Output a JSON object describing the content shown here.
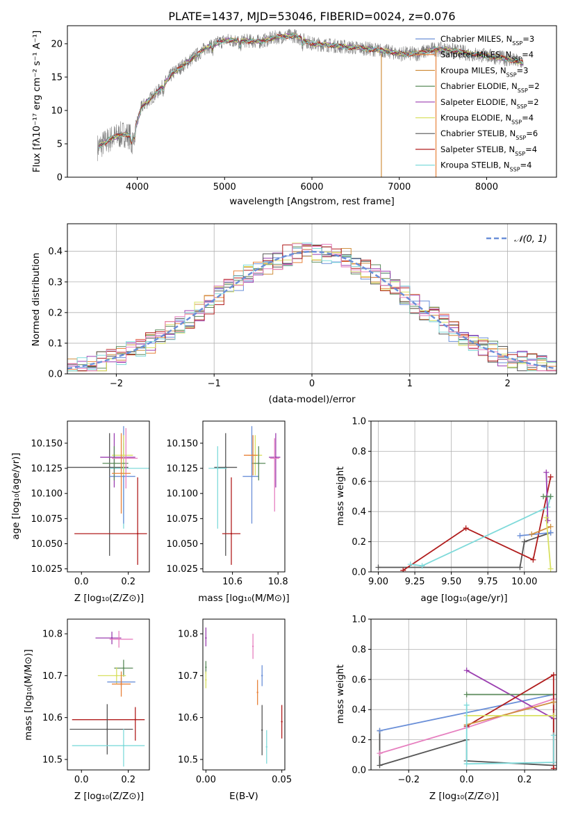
{
  "colors": {
    "Chabrier MILES": "#6a8fd8",
    "Salpeter MILES": "#e8823a",
    "Kroupa MILES": "#d09040",
    "Chabrier ELODIE": "#5a8a5a",
    "Salpeter ELODIE": "#9b3fb0",
    "Kroupa ELODIE": "#d8e060",
    "Chabrier STELIB": "#555555",
    "Salpeter STELIB": "#b01c1c",
    "Kroupa STELIB": "#7fdada",
    "Pink": "#e67fbf",
    "grid": "#b0b0b0"
  },
  "chart_data": [
    {
      "id": "spectrum",
      "type": "line",
      "title": "PLATE=1437, MJD=53046, FIBERID=0024, z=0.076",
      "xlabel": "wavelength [Angstrom, rest frame]",
      "ylabel": "Flux [fλ10⁻¹⁷ erg cm⁻² s⁻¹ A⁻¹]",
      "xlim": [
        3200,
        8800
      ],
      "ylim": [
        0,
        22.7
      ],
      "xticks": [
        "4000",
        "5000",
        "6000",
        "7000",
        "8000"
      ],
      "yticks": [
        "0",
        "5",
        "10",
        "15",
        "20"
      ],
      "grid": false,
      "legend_position": "right",
      "legend": [
        {
          "name": "Chabrier MILES",
          "nssp": "3"
        },
        {
          "name": "Salpeter MILES",
          "nssp": "4"
        },
        {
          "name": "Kroupa MILES",
          "nssp": "3"
        },
        {
          "name": "Chabrier ELODIE",
          "nssp": "2"
        },
        {
          "name": "Salpeter ELODIE",
          "nssp": "2"
        },
        {
          "name": "Kroupa ELODIE",
          "nssp": "4"
        },
        {
          "name": "Chabrier STELIB",
          "nssp": "6"
        },
        {
          "name": "Salpeter STELIB",
          "nssp": "4"
        },
        {
          "name": "Kroupa STELIB",
          "nssp": "4"
        }
      ],
      "continuum_x": [
        3550,
        3700,
        3850,
        3950,
        4050,
        4250,
        4400,
        4600,
        4800,
        5000,
        5200,
        5400,
        5600,
        5800,
        6000,
        6200,
        6400,
        6600,
        6800,
        7000,
        7200,
        7400,
        7600,
        7800,
        8000,
        8200,
        8400
      ],
      "continuum_y": [
        4.5,
        5.8,
        6.5,
        6.0,
        10.5,
        13.0,
        15.5,
        17.5,
        19.5,
        20.5,
        20.5,
        20.3,
        21.0,
        21.2,
        20.0,
        19.8,
        19.5,
        19.3,
        19.0,
        18.5,
        18.5,
        19.2,
        19.0,
        18.5,
        18.2,
        17.8,
        17.2
      ]
    },
    {
      "id": "residuals",
      "type": "line",
      "xlabel": "(data-model)/error",
      "ylabel": "Normed distribution",
      "xlim": [
        -2.5,
        2.5
      ],
      "ylim": [
        0,
        0.49
      ],
      "xticks": [
        "−2",
        "−1",
        "0",
        "1",
        "2"
      ],
      "yticks": [
        "0.0",
        "0.1",
        "0.2",
        "0.3",
        "0.4"
      ],
      "grid": true,
      "legend_position": "top-right",
      "legend_label": "𝒩(0, 1)",
      "histogram_bin_width": 0.1
    },
    {
      "id": "age-vs-Z",
      "type": "scatter",
      "xlabel": "Z [log₁₀(Z/Z⊙)]",
      "ylabel": "age  [log₁₀(age/yr)]",
      "xlim": [
        -0.06,
        0.29
      ],
      "ylim": [
        10.022,
        10.172
      ],
      "xticks": [
        "0.0",
        "0.2"
      ],
      "yticks": [
        "10.025",
        "10.050",
        "10.075",
        "10.100",
        "10.125",
        "10.150"
      ],
      "points": [
        {
          "color": "Chabrier STELIB",
          "x": 0.12,
          "y": 10.126,
          "xerr": [
            0.18,
            0.08
          ],
          "yerr": [
            0.088,
            0.034
          ]
        },
        {
          "color": "Kroupa STELIB",
          "x": 0.18,
          "y": 10.125,
          "xerr": [
            0.06,
            0.11
          ],
          "yerr": [
            0.06,
            0.025
          ]
        },
        {
          "color": "Salpeter STELIB",
          "x": 0.24,
          "y": 10.06,
          "xerr": [
            0.27,
            0.04
          ],
          "yerr": [
            0.031,
            0.056
          ]
        },
        {
          "color": "Chabrier MILES",
          "x": 0.18,
          "y": 10.117,
          "xerr": [
            0.06,
            0.05
          ],
          "yerr": [
            0.047,
            0.05
          ]
        },
        {
          "color": "Salpeter ELODIE",
          "x": 0.14,
          "y": 10.136,
          "xerr": [
            0.06,
            0.09
          ],
          "yerr": [
            0.03,
            0.024
          ]
        },
        {
          "color": "Kroupa ELODIE",
          "x": 0.18,
          "y": 10.138,
          "xerr": [
            0.05,
            0.04
          ],
          "yerr": [
            0.02,
            0.02
          ]
        },
        {
          "color": "Chabrier ELODIE",
          "x": 0.14,
          "y": 10.13,
          "xerr": [
            0.05,
            0.06
          ],
          "yerr": [
            0.017,
            0.017
          ]
        },
        {
          "color": "Pink",
          "x": 0.19,
          "y": 10.135,
          "xerr": [
            0.06,
            0.05
          ],
          "yerr": [
            0.03,
            0.03
          ]
        },
        {
          "color": "Salpeter MILES",
          "x": 0.17,
          "y": 10.12,
          "xerr": [
            0.04,
            0.04
          ],
          "yerr": [
            0.04,
            0.04
          ]
        }
      ]
    },
    {
      "id": "age-vs-mass",
      "type": "scatter",
      "xlabel": "mass [log₁₀(M/M⊙)]",
      "xlim": [
        10.47,
        10.83
      ],
      "ylim": [
        10.022,
        10.172
      ],
      "xticks": [
        "10.6",
        "10.8"
      ],
      "yticks": [
        "10.025",
        "10.050",
        "10.075",
        "10.100",
        "10.125",
        "10.150"
      ],
      "points": [
        {
          "color": "Chabrier STELIB",
          "x": 10.57,
          "y": 10.126,
          "xerr": [
            0.05,
            0.05
          ],
          "yerr": [
            0.088,
            0.034
          ]
        },
        {
          "color": "Kroupa STELIB",
          "x": 10.535,
          "y": 10.125,
          "xerr": [
            0.04,
            0.04
          ],
          "yerr": [
            0.06,
            0.022
          ]
        },
        {
          "color": "Salpeter STELIB",
          "x": 10.595,
          "y": 10.06,
          "xerr": [
            0.04,
            0.04
          ],
          "yerr": [
            0.031,
            0.056
          ]
        },
        {
          "color": "Chabrier MILES",
          "x": 10.685,
          "y": 10.117,
          "xerr": [
            0.04,
            0.03
          ],
          "yerr": [
            0.047,
            0.05
          ]
        },
        {
          "color": "Salpeter ELODIE",
          "x": 10.79,
          "y": 10.136,
          "xerr": [
            0.03,
            0.02
          ],
          "yerr": [
            0.03,
            0.024
          ]
        },
        {
          "color": "Kroupa ELODIE",
          "x": 10.7,
          "y": 10.138,
          "xerr": [
            0.03,
            0.03
          ],
          "yerr": [
            0.02,
            0.02
          ]
        },
        {
          "color": "Chabrier ELODIE",
          "x": 10.715,
          "y": 10.13,
          "xerr": [
            0.03,
            0.03
          ],
          "yerr": [
            0.017,
            0.017
          ]
        },
        {
          "color": "Pink",
          "x": 10.785,
          "y": 10.135,
          "xerr": [
            0.02,
            0.02
          ],
          "yerr": [
            0.053,
            0.02
          ]
        },
        {
          "color": "Salpeter MILES",
          "x": 10.69,
          "y": 10.138,
          "xerr": [
            0.04,
            0.02
          ],
          "yerr": [
            0.02,
            0.02
          ]
        }
      ]
    },
    {
      "id": "mass-weight-vs-age",
      "type": "line",
      "xlabel": "age  [log₁₀(age/yr)]",
      "ylabel": "mass weight",
      "xlim": [
        8.95,
        10.22
      ],
      "ylim": [
        0,
        1
      ],
      "xticks": [
        "9.00",
        "9.25",
        "9.50",
        "9.75",
        "10.00"
      ],
      "yticks": [
        "0.0",
        "0.2",
        "0.4",
        "0.6",
        "0.8",
        "1.0"
      ],
      "grid": true,
      "series": [
        {
          "color": "Chabrier STELIB",
          "x": [
            9.0,
            9.97,
            10.0,
            10.18
          ],
          "y": [
            0.03,
            0.03,
            0.2,
            0.26
          ]
        },
        {
          "color": "Salpeter STELIB",
          "x": [
            9.17,
            9.6,
            10.06,
            10.18
          ],
          "y": [
            0.01,
            0.29,
            0.08,
            0.63
          ]
        },
        {
          "color": "Kroupa STELIB",
          "x": [
            9.22,
            9.3,
            10.16,
            10.18
          ],
          "y": [
            0.05,
            0.04,
            0.43,
            0.5
          ]
        },
        {
          "color": "Salpeter ELODIE",
          "x": [
            10.15,
            10.16
          ],
          "y": [
            0.66,
            0.34
          ]
        },
        {
          "color": "Chabrier MILES",
          "x": [
            9.97,
            10.18
          ],
          "y": [
            0.24,
            0.26
          ]
        },
        {
          "color": "Kroupa MILES",
          "x": [
            10.05,
            10.18
          ],
          "y": [
            0.25,
            0.3
          ]
        },
        {
          "color": "Chabrier ELODIE",
          "x": [
            10.13,
            10.18
          ],
          "y": [
            0.5,
            0.5
          ]
        },
        {
          "color": "Kroupa ELODIE",
          "x": [
            10.15,
            10.18
          ],
          "y": [
            0.36,
            0.02
          ]
        }
      ]
    },
    {
      "id": "mass-vs-Z",
      "type": "scatter",
      "xlabel": "Z [log₁₀(Z/Z⊙)]",
      "ylabel": "mass [log₁₀(M/M⊙)]",
      "xlim": [
        -0.06,
        0.29
      ],
      "ylim": [
        10.475,
        10.835
      ],
      "xticks": [
        "0.0",
        "0.2"
      ],
      "yticks": [
        "10.5",
        "10.6",
        "10.7",
        "10.8"
      ],
      "points": [
        {
          "color": "Salpeter ELODIE",
          "x": 0.13,
          "y": 10.79,
          "xerr": [
            0.07,
            0.04
          ],
          "yerr": [
            0.015,
            0.015
          ]
        },
        {
          "color": "Pink",
          "x": 0.16,
          "y": 10.787,
          "xerr": [
            0.04,
            0.06
          ],
          "yerr": [
            0.02,
            0.02
          ]
        },
        {
          "color": "Chabrier ELODIE",
          "x": 0.18,
          "y": 10.718,
          "xerr": [
            0.04,
            0.04
          ],
          "yerr": [
            0.02,
            0.02
          ]
        },
        {
          "color": "Kroupa ELODIE",
          "x": 0.15,
          "y": 10.7,
          "xerr": [
            0.08,
            0.04
          ],
          "yerr": [
            0.02,
            0.02
          ]
        },
        {
          "color": "Chabrier MILES",
          "x": 0.17,
          "y": 10.685,
          "xerr": [
            0.06,
            0.06
          ],
          "yerr": [
            0.01,
            0.01
          ]
        },
        {
          "color": "Salpeter MILES",
          "x": 0.17,
          "y": 10.68,
          "xerr": [
            0.04,
            0.04
          ],
          "yerr": [
            0.03,
            0.03
          ]
        },
        {
          "color": "Salpeter STELIB",
          "x": 0.23,
          "y": 10.595,
          "xerr": [
            0.27,
            0.04
          ],
          "yerr": [
            0.05,
            0.03
          ]
        },
        {
          "color": "Chabrier STELIB",
          "x": 0.11,
          "y": 10.572,
          "xerr": [
            0.16,
            0.11
          ],
          "yerr": [
            0.06,
            0.06
          ]
        },
        {
          "color": "Kroupa STELIB",
          "x": 0.18,
          "y": 10.533,
          "xerr": [
            0.22,
            0.09
          ],
          "yerr": [
            0.05,
            0.04
          ]
        }
      ]
    },
    {
      "id": "mass-vs-EBV",
      "type": "scatter",
      "xlabel": "E(B-V)",
      "xlim": [
        -0.002,
        0.052
      ],
      "ylim": [
        10.475,
        10.835
      ],
      "xticks": [
        "0.00",
        "0.05"
      ],
      "yticks": [
        "10.5",
        "10.6",
        "10.7",
        "10.8"
      ],
      "points": [
        {
          "color": "Salpeter ELODIE",
          "x": 0.0,
          "y": 10.79,
          "yerr": [
            0.02,
            0.025
          ]
        },
        {
          "color": "Chabrier ELODIE",
          "x": 0.0,
          "y": 10.72,
          "yerr": [
            0.015,
            0.015
          ]
        },
        {
          "color": "Kroupa ELODIE",
          "x": 0.0,
          "y": 10.69,
          "yerr": [
            0.02,
            0.02
          ]
        },
        {
          "color": "Pink",
          "x": 0.031,
          "y": 10.77,
          "yerr": [
            0.03,
            0.03
          ]
        },
        {
          "color": "Salpeter MILES",
          "x": 0.034,
          "y": 10.66,
          "yerr": [
            0.03,
            0.03
          ]
        },
        {
          "color": "Chabrier MILES",
          "x": 0.037,
          "y": 10.7,
          "yerr": [
            0.025,
            0.025
          ]
        },
        {
          "color": "Chabrier STELIB",
          "x": 0.037,
          "y": 10.57,
          "yerr": [
            0.06,
            0.06
          ]
        },
        {
          "color": "Kroupa STELIB",
          "x": 0.04,
          "y": 10.53,
          "yerr": [
            0.04,
            0.04
          ]
        },
        {
          "color": "Salpeter STELIB",
          "x": 0.05,
          "y": 10.59,
          "yerr": [
            0.04,
            0.04
          ]
        }
      ]
    },
    {
      "id": "mass-weight-vs-Z",
      "type": "line",
      "xlabel": "Z [log₁₀(Z/Z⊙)]",
      "ylabel": "mass weight",
      "xlim": [
        -0.33,
        0.31
      ],
      "ylim": [
        0,
        1
      ],
      "xticks": [
        "−0.2",
        "0.0",
        "0.2"
      ],
      "yticks": [
        "0.0",
        "0.2",
        "0.4",
        "0.6",
        "0.8",
        "1.0"
      ],
      "grid": true,
      "series": [
        {
          "color": "Chabrier STELIB",
          "x": [
            -0.3,
            -0.3,
            0.0,
            0.0,
            0.3,
            0.3
          ],
          "y": [
            0.26,
            0.03,
            0.2,
            0.06,
            0.03,
            0.5
          ]
        },
        {
          "color": "Chabrier MILES",
          "x": [
            -0.3,
            0.3
          ],
          "y": [
            0.26,
            0.5
          ]
        },
        {
          "color": "Pink",
          "x": [
            -0.3,
            0.0,
            0.3
          ],
          "y": [
            0.11,
            0.28,
            0.47
          ]
        },
        {
          "color": "Salpeter ELODIE",
          "x": [
            0.0,
            0.3
          ],
          "y": [
            0.66,
            0.34
          ]
        },
        {
          "color": "Chabrier ELODIE",
          "x": [
            0.0,
            0.3
          ],
          "y": [
            0.5,
            0.5
          ]
        },
        {
          "color": "Salpeter STELIB",
          "x": [
            0.0,
            0.3,
            0.3
          ],
          "y": [
            0.29,
            0.63,
            0.01
          ]
        },
        {
          "color": "Kroupa MILES",
          "x": [
            0.0,
            0.3
          ],
          "y": [
            0.3,
            0.45
          ]
        },
        {
          "color": "Kroupa ELODIE",
          "x": [
            0.0,
            0.3
          ],
          "y": [
            0.36,
            0.36
          ]
        },
        {
          "color": "Kroupa STELIB",
          "x": [
            0.0,
            0.0,
            0.3,
            0.3
          ],
          "y": [
            0.43,
            0.04,
            0.05,
            0.23
          ]
        }
      ]
    }
  ]
}
